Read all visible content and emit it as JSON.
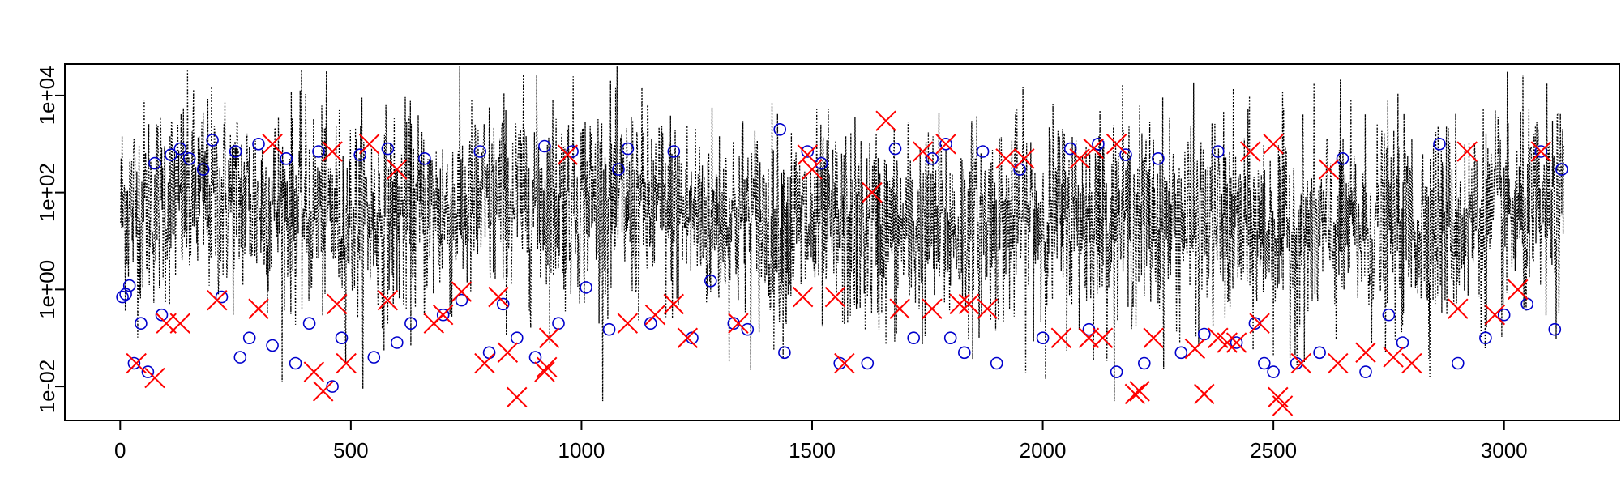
{
  "chart_data": {
    "type": "scatter",
    "title": "",
    "xlabel": "",
    "ylabel": "",
    "x_range": [
      -120,
      3250
    ],
    "y_log10_range": [
      -2.7,
      4.65
    ],
    "y_scale": "log10",
    "x_ticks": [
      {
        "value": 0,
        "label": "0"
      },
      {
        "value": 500,
        "label": "500"
      },
      {
        "value": 1000,
        "label": "1000"
      },
      {
        "value": 1500,
        "label": "1500"
      },
      {
        "value": 2000,
        "label": "2000"
      },
      {
        "value": 2500,
        "label": "2500"
      },
      {
        "value": 3000,
        "label": "3000"
      }
    ],
    "y_ticks": [
      {
        "value": 0.01,
        "label": "1e-02"
      },
      {
        "value": 1,
        "label": "1e+00"
      },
      {
        "value": 100,
        "label": "1e+02"
      },
      {
        "value": 10000,
        "label": "1e+04"
      }
    ],
    "series": [
      {
        "line_style": "dotted",
        "marker": "none",
        "color": "#000000",
        "description": "time series, ~3130 points, x 1-3130, values ~0.005 to ~30000, dense band centred near 1e+01 to 1e+02",
        "n": 3130,
        "x_start": 1,
        "x_end": 3130
      },
      {
        "marker": "circle",
        "color": "#0000cc",
        "x": [
          5,
          12,
          20,
          30,
          45,
          60,
          75,
          90,
          110,
          130,
          150,
          180,
          200,
          220,
          250,
          260,
          280,
          300,
          330,
          360,
          380,
          410,
          430,
          460,
          480,
          520,
          550,
          580,
          600,
          630,
          660,
          700,
          740,
          780,
          800,
          830,
          860,
          900,
          920,
          950,
          980,
          1010,
          1060,
          1080,
          1100,
          1150,
          1200,
          1240,
          1280,
          1330,
          1360,
          1430,
          1440,
          1490,
          1520,
          1560,
          1620,
          1680,
          1720,
          1760,
          1790,
          1800,
          1830,
          1870,
          1900,
          1950,
          2000,
          2060,
          2100,
          2120,
          2160,
          2180,
          2220,
          2250,
          2300,
          2350,
          2380,
          2420,
          2460,
          2480,
          2500,
          2550,
          2600,
          2650,
          2700,
          2750,
          2780,
          2860,
          2900,
          2960,
          3000,
          3050,
          3080,
          3110,
          3125
        ],
        "y": [
          0.7,
          0.8,
          1.2,
          0.03,
          0.2,
          0.02,
          400,
          0.3,
          600,
          800,
          500,
          300,
          1200,
          0.7,
          700,
          0.04,
          0.1,
          1000,
          0.07,
          500,
          0.03,
          0.2,
          700,
          0.01,
          0.1,
          600,
          0.04,
          800,
          0.08,
          0.2,
          500,
          0.3,
          0.6,
          700,
          0.05,
          0.5,
          0.1,
          0.04,
          900,
          0.2,
          700,
          1.1,
          0.15,
          300,
          800,
          0.2,
          700,
          0.1,
          1.5,
          0.2,
          0.15,
          2000,
          0.05,
          700,
          400,
          0.03,
          0.03,
          800,
          0.1,
          500,
          1000,
          0.1,
          0.05,
          700,
          0.03,
          300,
          0.1,
          800,
          0.15,
          1000,
          0.02,
          600,
          0.03,
          500,
          0.05,
          0.12,
          700,
          0.08,
          0.2,
          0.03,
          0.02,
          0.03,
          0.05,
          500,
          0.02,
          0.3,
          0.08,
          1000,
          0.03,
          0.1,
          0.3,
          0.5,
          700,
          0.15,
          300
        ]
      },
      {
        "marker": "x",
        "color": "#ff0000",
        "x": [
          35,
          75,
          100,
          130,
          210,
          300,
          330,
          420,
          440,
          460,
          470,
          490,
          540,
          580,
          600,
          680,
          700,
          740,
          790,
          820,
          840,
          860,
          920,
          925,
          930,
          970,
          1100,
          1160,
          1200,
          1230,
          1340,
          1480,
          1490,
          1500,
          1550,
          1570,
          1630,
          1660,
          1690,
          1740,
          1760,
          1790,
          1820,
          1840,
          1880,
          1920,
          1960,
          2040,
          2080,
          2100,
          2110,
          2130,
          2160,
          2200,
          2210,
          2240,
          2330,
          2350,
          2380,
          2400,
          2420,
          2450,
          2470,
          2500,
          2510,
          2520,
          2560,
          2620,
          2640,
          2700,
          2760,
          2800,
          2900,
          2920,
          2980,
          3030,
          3080
        ],
        "y": [
          0.03,
          0.015,
          0.2,
          0.2,
          0.6,
          0.4,
          1000,
          0.02,
          0.008,
          700,
          0.5,
          0.03,
          1000,
          0.6,
          300,
          0.2,
          0.3,
          0.9,
          0.03,
          0.7,
          0.05,
          0.006,
          0.02,
          0.025,
          0.1,
          600,
          0.2,
          0.3,
          0.5,
          0.1,
          0.2,
          0.7,
          600,
          300,
          0.7,
          0.03,
          100,
          3000,
          0.4,
          700,
          0.4,
          1000,
          0.5,
          0.5,
          0.4,
          500,
          500,
          0.1,
          500,
          0.1,
          800,
          0.1,
          1000,
          0.007,
          0.008,
          0.1,
          0.06,
          0.007,
          0.1,
          0.08,
          0.08,
          700,
          0.2,
          1000,
          0.006,
          0.004,
          0.03,
          300,
          0.03,
          0.05,
          0.04,
          0.03,
          0.4,
          700,
          0.3,
          1,
          700
        ]
      }
    ],
    "grid": false,
    "legend": "none"
  }
}
